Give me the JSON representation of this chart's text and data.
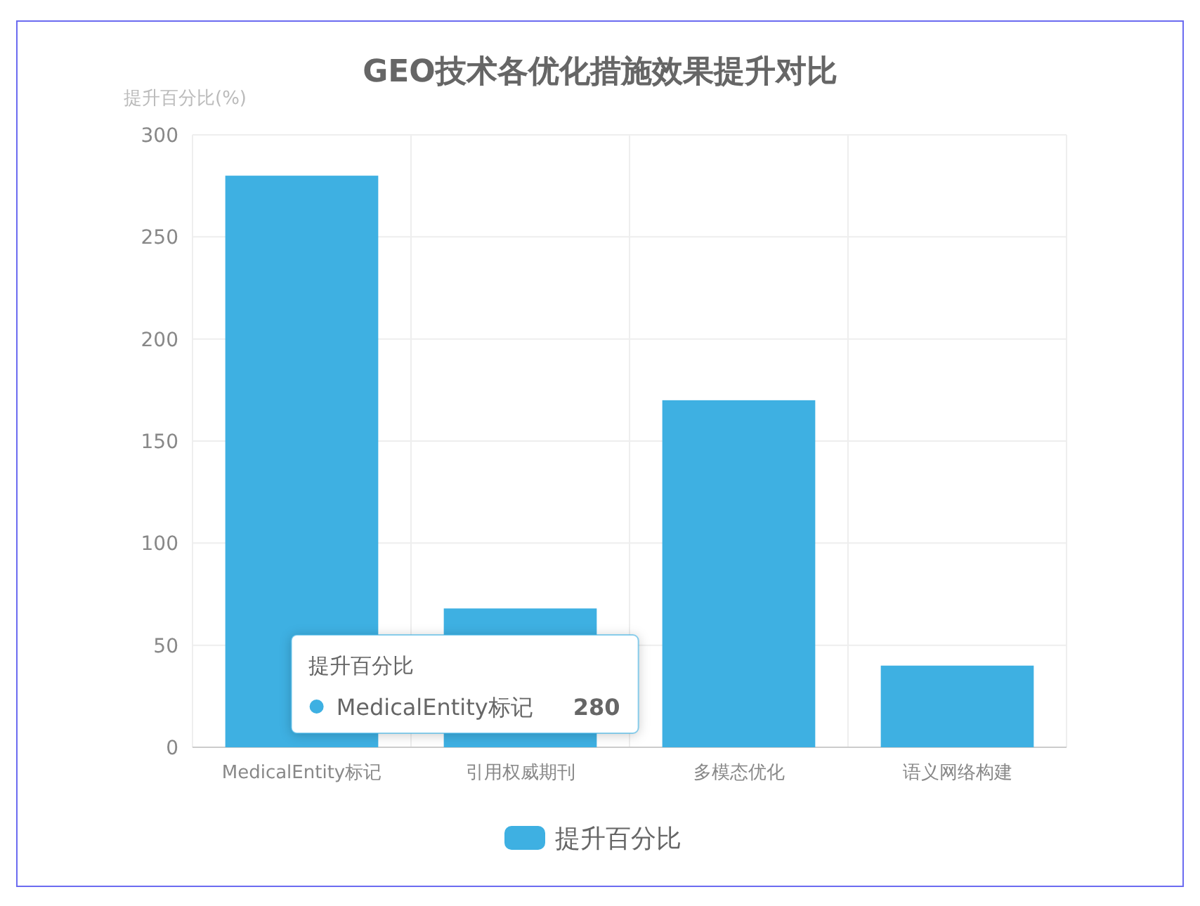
{
  "chart_data": {
    "type": "bar",
    "title": "GEO技术各优化措施效果提升对比",
    "ylabel": "提升百分比(%)",
    "categories": [
      "MedicalEntity标记",
      "引用权威期刊",
      "多模态优化",
      "语义网络构建"
    ],
    "series": [
      {
        "name": "提升百分比",
        "color": "#3eb0e2",
        "values": [
          280,
          68,
          170,
          40
        ]
      }
    ],
    "annotations": [
      "280"
    ],
    "ylim": [
      0,
      300
    ],
    "yticks": [
      0,
      50,
      100,
      150,
      200,
      250,
      300
    ],
    "grid": true,
    "legend": "bottom"
  }
}
